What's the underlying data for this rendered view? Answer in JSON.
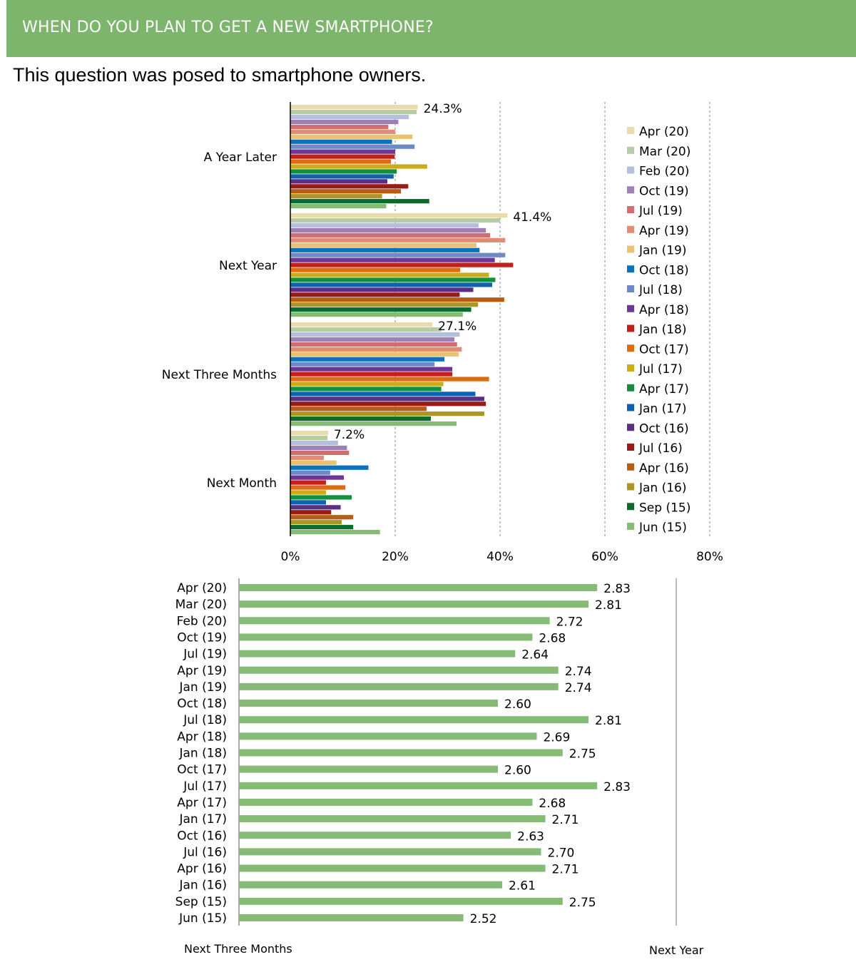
{
  "header": {
    "title": "WHEN DO YOU PLAN TO GET A NEW SMARTPHONE?"
  },
  "subtitle": "This question was posed to smartphone owners.",
  "colors": {
    "header_band": "#7cb56b",
    "bar_green": "#86bb75"
  },
  "chart_data": [
    {
      "type": "bar",
      "orientation": "horizontal",
      "title": "",
      "xlabel": "",
      "ylabel": "",
      "xlim": [
        0,
        80
      ],
      "x_ticks": [
        "0%",
        "20%",
        "40%",
        "60%",
        "80%"
      ],
      "grid": "dashed vertical",
      "legend_position": "right",
      "categories": [
        "A Year Later",
        "Next Year",
        "Next Three Months",
        "Next Month"
      ],
      "series": [
        {
          "name": "Apr (20)",
          "color": "#e8dcaa",
          "values": [
            24.3,
            41.4,
            27.1,
            7.2
          ]
        },
        {
          "name": "Mar (20)",
          "color": "#b8cca4",
          "values": [
            24.1,
            40.0,
            28.8,
            7.1
          ]
        },
        {
          "name": "Feb (20)",
          "color": "#b4bedf",
          "values": [
            22.6,
            35.9,
            32.3,
            9.1
          ]
        },
        {
          "name": "Oct (19)",
          "color": "#9d80b6",
          "values": [
            20.6,
            37.3,
            31.3,
            10.8
          ]
        },
        {
          "name": "Jul (19)",
          "color": "#d06e70",
          "values": [
            18.7,
            38.1,
            31.8,
            11.2
          ]
        },
        {
          "name": "Apr (19)",
          "color": "#e18c73",
          "values": [
            20.0,
            41.0,
            32.7,
            6.4
          ]
        },
        {
          "name": "Jan (19)",
          "color": "#e9c273",
          "values": [
            23.3,
            35.5,
            32.1,
            8.8
          ]
        },
        {
          "name": "Oct (18)",
          "color": "#0b72bb",
          "values": [
            19.4,
            36.1,
            29.4,
            14.9
          ]
        },
        {
          "name": "Jul (18)",
          "color": "#6d8ac6",
          "values": [
            23.7,
            41.0,
            27.5,
            7.6
          ]
        },
        {
          "name": "Apr (18)",
          "color": "#6e3696",
          "values": [
            20.0,
            39.0,
            30.9,
            10.2
          ]
        },
        {
          "name": "Jan (18)",
          "color": "#c0211b",
          "values": [
            19.9,
            42.5,
            30.9,
            6.8
          ]
        },
        {
          "name": "Oct (17)",
          "color": "#dd6b10",
          "values": [
            19.2,
            32.4,
            37.9,
            10.5
          ]
        },
        {
          "name": "Jul (17)",
          "color": "#cdad17",
          "values": [
            26.1,
            37.9,
            29.2,
            6.8
          ]
        },
        {
          "name": "Apr (17)",
          "color": "#148f3e",
          "values": [
            20.3,
            39.1,
            28.8,
            11.7
          ]
        },
        {
          "name": "Jan (17)",
          "color": "#0d62b1",
          "values": [
            19.7,
            38.5,
            35.3,
            6.8
          ]
        },
        {
          "name": "Oct (16)",
          "color": "#5b2e82",
          "values": [
            18.5,
            34.9,
            37.0,
            9.6
          ]
        },
        {
          "name": "Jul (16)",
          "color": "#9b1b16",
          "values": [
            22.5,
            32.3,
            37.3,
            7.8
          ]
        },
        {
          "name": "Apr (16)",
          "color": "#b65c14",
          "values": [
            21.1,
            40.8,
            26.0,
            12.0
          ]
        },
        {
          "name": "Jan (16)",
          "color": "#ad9524",
          "values": [
            17.5,
            35.8,
            37.0,
            9.8
          ]
        },
        {
          "name": "Sep (15)",
          "color": "#0a6c2c",
          "values": [
            26.5,
            34.5,
            26.8,
            12.0
          ]
        },
        {
          "name": "Jun (15)",
          "color": "#86bb75",
          "values": [
            18.3,
            32.9,
            31.7,
            17.1
          ]
        }
      ],
      "data_labels": [
        {
          "category": "A Year Later",
          "text": "24.3%"
        },
        {
          "category": "Next Year",
          "text": "41.4%"
        },
        {
          "category": "Next Three Months",
          "text": "27.1%"
        },
        {
          "category": "Next Month",
          "text": "7.2%"
        }
      ]
    },
    {
      "type": "bar",
      "orientation": "horizontal",
      "title": "",
      "xlabel": "",
      "ylabel": "",
      "xlim": [
        2.0,
        3.0
      ],
      "grid": "off",
      "scale_end_labels": {
        "left": "Next Three Months",
        "right": "Next Year"
      },
      "categories": [
        "Apr (20)",
        "Mar (20)",
        "Feb (20)",
        "Oct (19)",
        "Jul (19)",
        "Apr (19)",
        "Jan (19)",
        "Oct (18)",
        "Jul (18)",
        "Apr (18)",
        "Jan (18)",
        "Oct (17)",
        "Jul (17)",
        "Apr (17)",
        "Jan (17)",
        "Oct (16)",
        "Jul (16)",
        "Apr (16)",
        "Jan (16)",
        "Sep (15)",
        "Jun (15)"
      ],
      "values": [
        2.83,
        2.81,
        2.72,
        2.68,
        2.64,
        2.74,
        2.74,
        2.6,
        2.81,
        2.69,
        2.75,
        2.6,
        2.83,
        2.68,
        2.71,
        2.63,
        2.7,
        2.71,
        2.61,
        2.75,
        2.52
      ],
      "value_labels": [
        "2.83",
        "2.81",
        "2.72",
        "2.68",
        "2.64",
        "2.74",
        "2.74",
        "2.60",
        "2.81",
        "2.69",
        "2.75",
        "2.60",
        "2.83",
        "2.68",
        "2.71",
        "2.63",
        "2.70",
        "2.71",
        "2.61",
        "2.75",
        "2.52"
      ]
    }
  ]
}
